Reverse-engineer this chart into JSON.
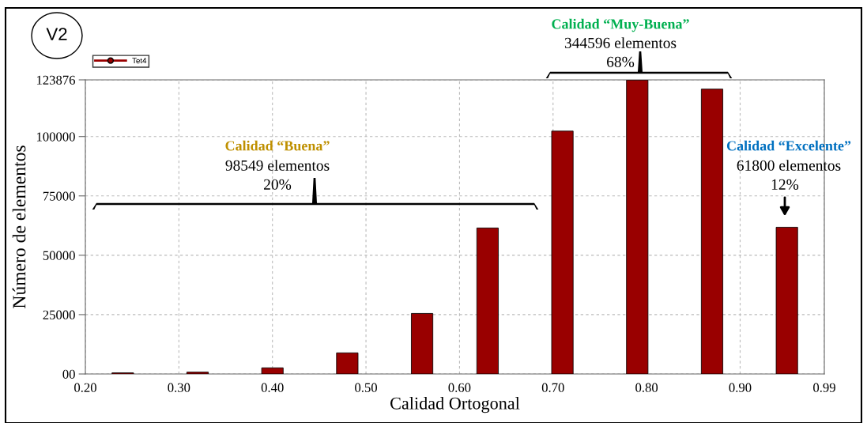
{
  "chart_data": {
    "type": "bar",
    "xlabel": "Calidad Ortogonal",
    "ylabel": "Número de elementos",
    "x": [
      0.24,
      0.32,
      0.4,
      0.48,
      0.56,
      0.63,
      0.71,
      0.79,
      0.87,
      0.95
    ],
    "series": [
      {
        "name": "Tet4",
        "color": "#990000",
        "values": [
          500,
          800,
          2600,
          8900,
          25500,
          61500,
          102300,
          123800,
          120000,
          61800
        ]
      }
    ],
    "xlim": [
      0.2,
      0.99
    ],
    "xticks": [
      {
        "value": 0.2,
        "label": "0.20"
      },
      {
        "value": 0.3,
        "label": "0.30"
      },
      {
        "value": 0.4,
        "label": "0.40"
      },
      {
        "value": 0.5,
        "label": "0.50"
      },
      {
        "value": 0.6,
        "label": "0.60"
      },
      {
        "value": 0.7,
        "label": "0.70"
      },
      {
        "value": 0.8,
        "label": "0.80"
      },
      {
        "value": 0.9,
        "label": "0.90"
      },
      0.99
    ],
    "ylim": [
      0,
      123876
    ],
    "yticks": [
      {
        "value": 0,
        "label": "00"
      },
      25000,
      50000,
      75000,
      100000,
      123876
    ],
    "grid": true,
    "legend": "top left",
    "annotations": [
      "V2",
      "Calidad “Buena”",
      "98549 elementos",
      "20%",
      "Calidad “Muy-Buena”",
      "344596 elementos",
      "68%",
      "Calidad “Excelente”",
      "61800 elementos",
      "12%"
    ]
  }
}
